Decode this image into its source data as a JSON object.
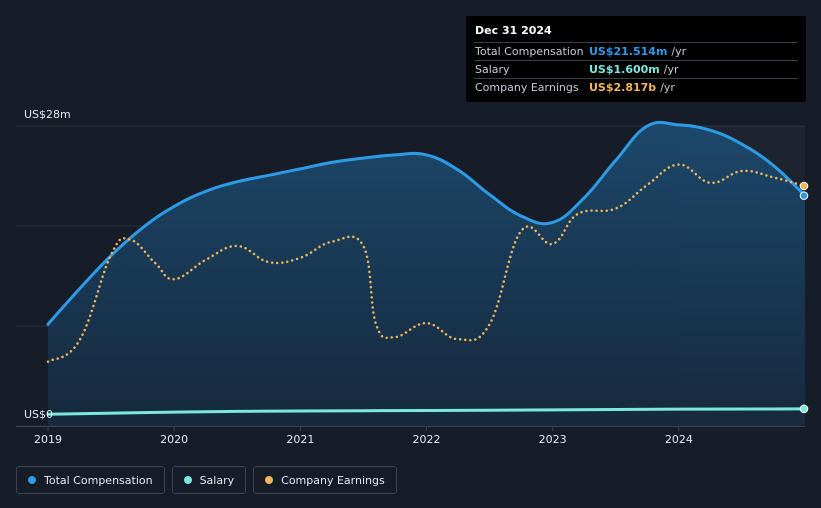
{
  "tooltip": {
    "date": "Dec 31 2024",
    "rows": [
      {
        "name": "Total Compensation",
        "value": "US$21.514m",
        "unit": "/yr",
        "color": "#2e9be6"
      },
      {
        "name": "Salary",
        "value": "US$1.600m",
        "unit": "/yr",
        "color": "#7ee8dc"
      },
      {
        "name": "Company Earnings",
        "value": "US$2.817b",
        "unit": "/yr",
        "color": "#f0b55a"
      }
    ]
  },
  "legend": [
    {
      "label": "Total Compensation",
      "color": "#2e9be6"
    },
    {
      "label": "Salary",
      "color": "#7ee8dc"
    },
    {
      "label": "Company Earnings",
      "color": "#f0b55a"
    }
  ],
  "chart_data": {
    "type": "line",
    "y_top_label": "US$28m",
    "y_bottom_label": "US$0",
    "ylim": [
      0,
      28
    ],
    "xlim": [
      2019.0,
      2025.0
    ],
    "x_ticks": [
      "2019",
      "2020",
      "2021",
      "2022",
      "2023",
      "2024"
    ],
    "x_tick_values": [
      2019,
      2020,
      2021,
      2022,
      2023,
      2024
    ],
    "grid": true,
    "highlight_from": 2024.0,
    "series": [
      {
        "name": "Total Compensation",
        "color": "#2e9be6",
        "style": "solid-area",
        "x": [
          2019.0,
          2019.25,
          2019.5,
          2019.75,
          2020.0,
          2020.25,
          2020.5,
          2020.75,
          2021.0,
          2021.25,
          2021.5,
          2021.75,
          2022.0,
          2022.25,
          2022.5,
          2022.75,
          2023.0,
          2023.25,
          2023.5,
          2023.75,
          2024.0,
          2024.25,
          2024.5,
          2024.75,
          2025.0
        ],
        "values": [
          9.5,
          12.8,
          15.9,
          18.5,
          20.5,
          21.9,
          22.8,
          23.4,
          24.0,
          24.6,
          25.0,
          25.3,
          25.3,
          23.9,
          21.6,
          19.6,
          19.0,
          21.3,
          24.8,
          28.0,
          28.1,
          27.6,
          26.3,
          24.3,
          21.5
        ]
      },
      {
        "name": "Salary",
        "color": "#7ee8dc",
        "style": "solid",
        "x": [
          2019.0,
          2020.0,
          2021.0,
          2022.0,
          2023.0,
          2024.0,
          2025.0
        ],
        "values": [
          1.1,
          1.3,
          1.4,
          1.45,
          1.5,
          1.58,
          1.6
        ]
      },
      {
        "name": "Company Earnings",
        "color": "#f0b55a",
        "style": "dotted",
        "scale": "independent",
        "x": [
          2019.0,
          2019.25,
          2019.5,
          2019.65,
          2019.85,
          2020.0,
          2020.25,
          2020.5,
          2020.75,
          2021.0,
          2021.25,
          2021.5,
          2021.6,
          2021.75,
          2022.0,
          2022.25,
          2022.5,
          2022.75,
          2023.0,
          2023.2,
          2023.5,
          2023.75,
          2024.0,
          2024.25,
          2024.5,
          2024.75,
          2025.0
        ],
        "values": [
          6.0,
          8.0,
          16.0,
          17.4,
          15.2,
          13.7,
          15.5,
          16.8,
          15.3,
          15.7,
          17.2,
          16.8,
          9.5,
          8.3,
          9.6,
          8.1,
          9.5,
          18.2,
          17.0,
          19.8,
          20.3,
          22.5,
          24.4,
          22.7,
          23.8,
          23.2,
          22.4
        ]
      }
    ]
  }
}
